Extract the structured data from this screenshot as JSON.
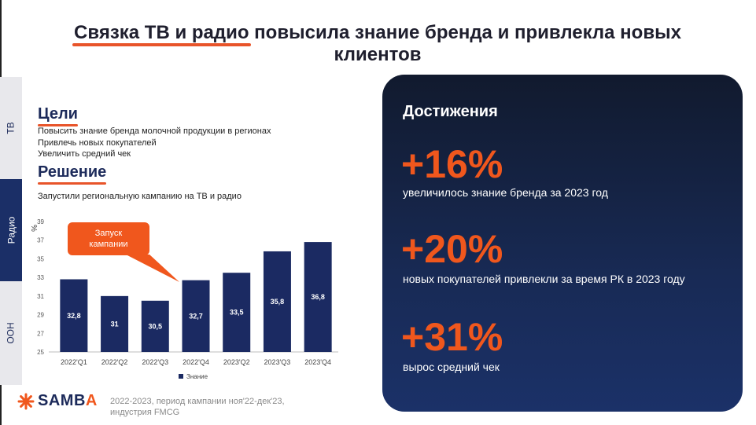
{
  "title": {
    "highlight": "Связка ТВ и радио",
    "rest": " повысила знание бренда и привлекла новых клиентов"
  },
  "side_tabs": [
    "ТВ",
    "Радио",
    "OOH"
  ],
  "goals": {
    "heading": "Цели",
    "items": [
      "Повысить знание бренда молочной продукции в регионах",
      "Привлечь новых покупателей",
      "Увеличить средний чек"
    ]
  },
  "solution": {
    "heading": "Решение",
    "text": "Запустили региональную кампанию на ТВ и радио"
  },
  "callout": {
    "line1": "Запуск",
    "line2": "кампании"
  },
  "chart_data": {
    "type": "bar",
    "categories": [
      "2022'Q1",
      "2022'Q2",
      "2022'Q3",
      "2022'Q4",
      "2023'Q2",
      "2023'Q3",
      "2023'Q4"
    ],
    "values": [
      32.8,
      31,
      30.5,
      32.7,
      33.5,
      35.8,
      36.8
    ],
    "value_labels": [
      "32,8",
      "31",
      "30,5",
      "32,7",
      "33,5",
      "35,8",
      "36,8"
    ],
    "series": [
      {
        "name": "Знание",
        "values": [
          32.8,
          31,
          30.5,
          32.7,
          33.5,
          35.8,
          36.8
        ]
      }
    ],
    "ylabel": "%",
    "ylim": [
      25,
      39
    ],
    "yticks": [
      25,
      27,
      29,
      31,
      33,
      35,
      37,
      39
    ],
    "bar_color": "#1b2a62",
    "legend": "bottom",
    "grid": false
  },
  "achievements": {
    "heading": "Достижения",
    "stats": [
      {
        "value": "+16%",
        "desc": "увеличилось знание бренда за 2023 год"
      },
      {
        "value": "+20%",
        "desc": "новых покупателей привлекли за время РК в 2023 году"
      },
      {
        "value": "+31%",
        "desc": "вырос средний чек"
      }
    ]
  },
  "footer": {
    "logo_main": "SAMB",
    "logo_accent": "A",
    "note_line1": "2022-2023, период кампании ноя'22-дек'23,",
    "note_line2": "индустрия FMCG"
  },
  "colors": {
    "accent": "#f0571d",
    "navy": "#1b2a62",
    "panel": "#14213f"
  }
}
